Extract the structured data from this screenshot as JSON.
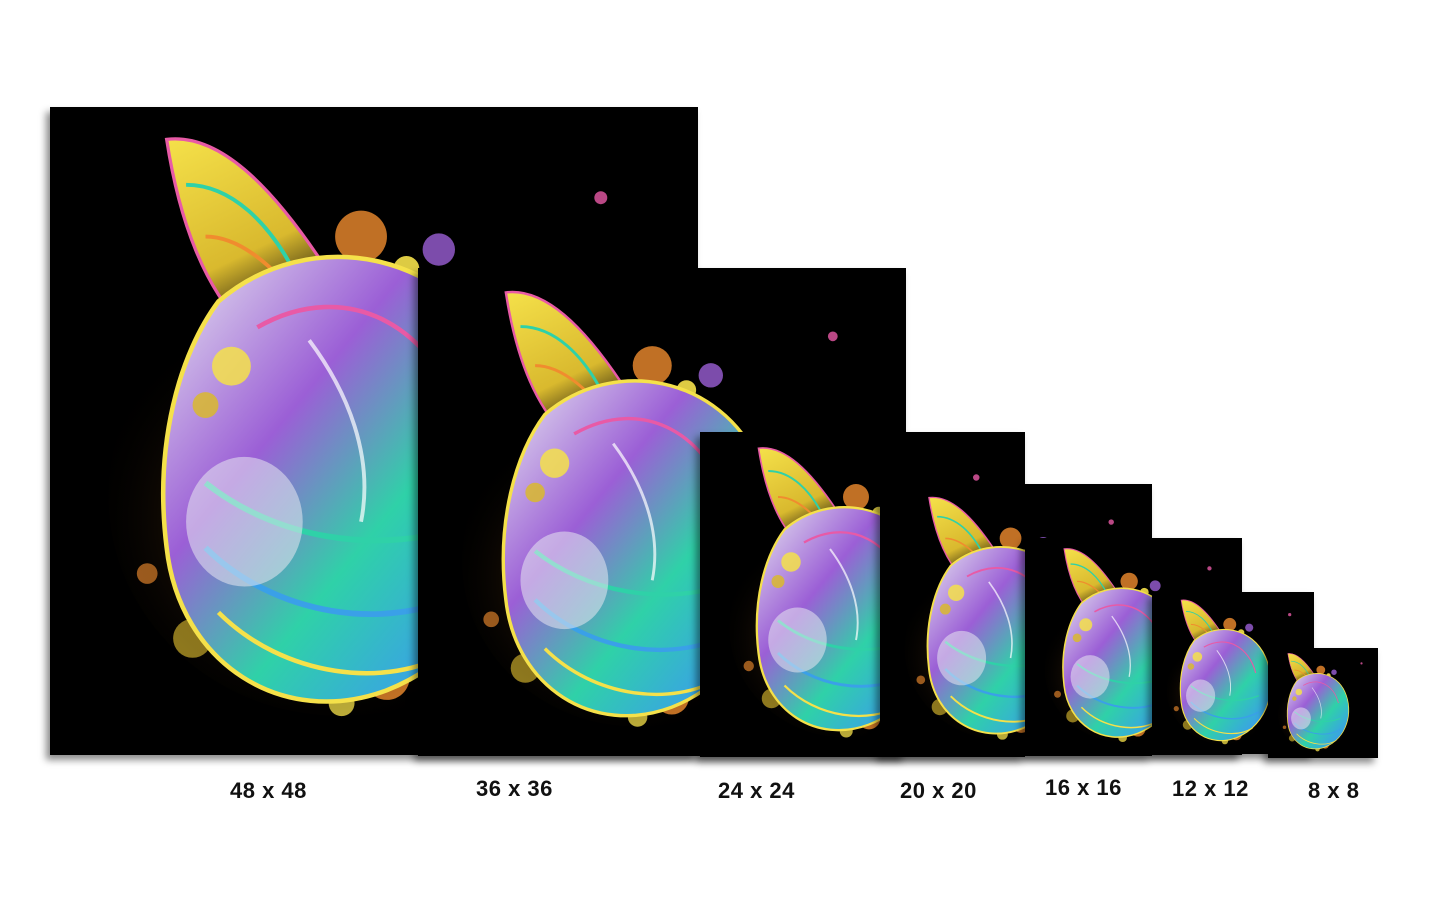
{
  "background_color": "#ffffff",
  "print_background": "#000000",
  "artwork": {
    "subject_icon": "seashell-icon",
    "palette": [
      "#f5e14a",
      "#d9b92e",
      "#2fd1a8",
      "#3aa0e8",
      "#9b5fd6",
      "#e85aa6",
      "#f08c2e",
      "#e8e8f0"
    ]
  },
  "sizes": [
    {
      "label": "48 x 48"
    },
    {
      "label": "36 x 36"
    },
    {
      "label": "24 x 24"
    },
    {
      "label": "20 x 20"
    },
    {
      "label": "16 x 16"
    },
    {
      "label": "12 x 12"
    },
    {
      "label": "8 x 8"
    }
  ]
}
